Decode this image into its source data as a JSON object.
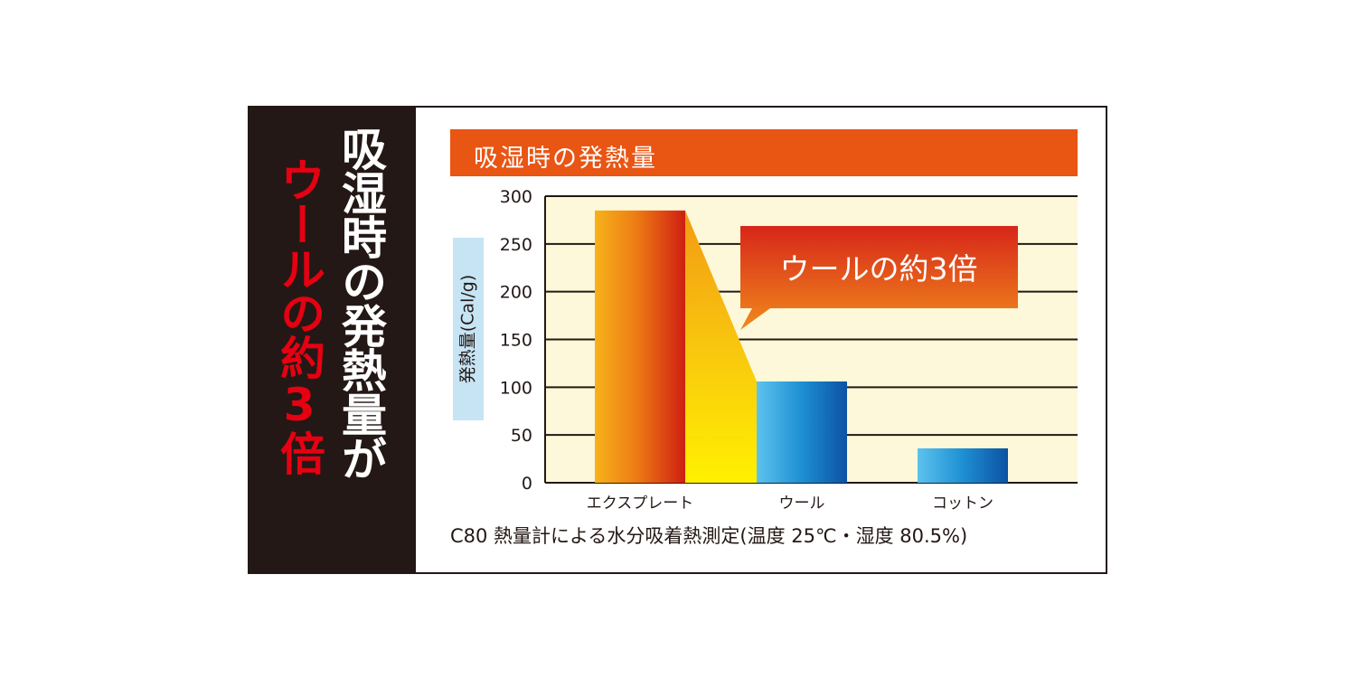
{
  "banner": {
    "line1": "吸湿時の発熱量が",
    "line2": "ウールの約3倍"
  },
  "callout": "ウールの約3倍",
  "footnote": "C80 熱量計による水分吸着熱測定(温度 25℃・湿度 80.5%)",
  "colors": {
    "banner_bg": "#231815",
    "banner_accent": "#e60012",
    "title_bar": "#e95513",
    "plot_bg": "#fdf8d9",
    "bar_orange": "#e8830f",
    "bar_blue": "#1a7ac4"
  },
  "chart_data": {
    "type": "bar",
    "title": "吸湿時の発熱量",
    "ylabel": "発熱量(Cal/g)",
    "xlabel": "",
    "categories": [
      "エクスプレート",
      "ウール",
      "コットン"
    ],
    "values": [
      285,
      106,
      36
    ],
    "ylim": [
      0,
      300
    ],
    "yticks": [
      0,
      50,
      100,
      150,
      200,
      250,
      300
    ],
    "grid": true
  }
}
